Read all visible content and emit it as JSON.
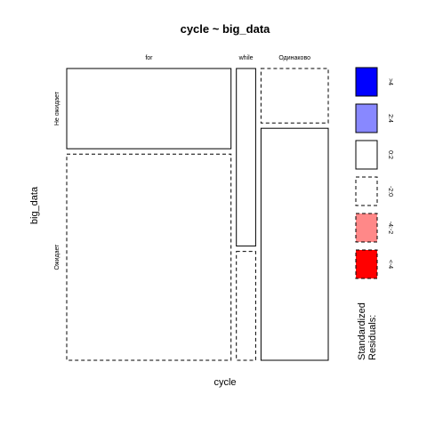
{
  "chart_data": {
    "type": "mosaic",
    "title": "cycle ~ big_data",
    "xlabel": "cycle",
    "ylabel": "big_data",
    "x_categories": [
      "for",
      "while",
      "Одинаково"
    ],
    "y_categories": [
      "Не ожидает",
      "Ожидает"
    ],
    "cells": [
      {
        "x": "for",
        "y": "Не ожидает",
        "col_share": 0.655,
        "row_share": 0.28,
        "residual_sign": "positive"
      },
      {
        "x": "for",
        "y": "Ожидает",
        "col_share": 0.655,
        "row_share": 0.72,
        "residual_sign": "negative"
      },
      {
        "x": "while",
        "y": "Не ожидает",
        "col_share": 0.077,
        "row_share": 0.62,
        "residual_sign": "positive"
      },
      {
        "x": "while",
        "y": "Ожидает",
        "col_share": 0.077,
        "row_share": 0.38,
        "residual_sign": "negative"
      },
      {
        "x": "Одинаково",
        "y": "Не ожидает",
        "col_share": 0.268,
        "row_share": 0.19,
        "residual_sign": "negative"
      },
      {
        "x": "Одинаково",
        "y": "Ожидает",
        "col_share": 0.268,
        "row_share": 0.81,
        "residual_sign": "positive"
      }
    ],
    "legend": {
      "title": [
        "Standardized",
        "Residuals:"
      ],
      "placement": "right",
      "entries": [
        {
          "label": ">4",
          "fill": "#0000ff",
          "dashed": false
        },
        {
          "label": "2:4",
          "fill": "#8888ff",
          "dashed": false
        },
        {
          "label": "0:2",
          "fill": "#ffffff",
          "dashed": false
        },
        {
          "label": "-2:0",
          "fill": "#ffffff",
          "dashed": true
        },
        {
          "label": "-4:-2",
          "fill": "#ff8888",
          "dashed": true
        },
        {
          "label": "<-4",
          "fill": "#ff0000",
          "dashed": true
        }
      ]
    }
  }
}
